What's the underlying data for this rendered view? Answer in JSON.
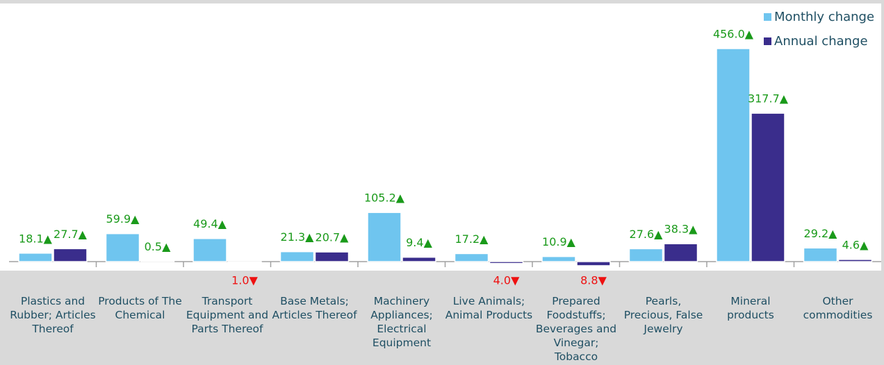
{
  "chart_data": {
    "type": "bar",
    "categories": [
      "Plastics and Rubber; Articles Thereof",
      "Products of The Chemical",
      "Transport Equipment and Parts Thereof",
      "Base Metals; Articles Thereof",
      "Machinery Appliances; Electrical Equipment",
      "Live Animals; Animal Products",
      "Prepared Foodstuffs; Beverages and Vinegar; Tobacco",
      "Pearls, Precious, False Jewelry",
      "Mineral products",
      "Other commodities"
    ],
    "series": [
      {
        "name": "Monthly change",
        "color": "#6fc5ef",
        "values": [
          18.1,
          59.9,
          49.4,
          21.3,
          105.2,
          17.2,
          10.9,
          27.6,
          456.0,
          29.2
        ],
        "value_labels": [
          "18.1▲",
          "59.9▲",
          "49.4▲",
          "21.3▲",
          "105.2▲",
          "17.2▲",
          "10.9▲",
          "27.6▲",
          "456.0▲",
          "29.2▲"
        ]
      },
      {
        "name": "Annual change",
        "color": "#3a2d8c",
        "values": [
          27.7,
          0.5,
          -1.0,
          20.7,
          9.4,
          -4.0,
          -8.8,
          38.3,
          317.7,
          4.6
        ],
        "value_labels": [
          "27.7▲",
          "0.5▲",
          "1.0▼",
          "20.7▲",
          "9.4▲",
          "4.0▼",
          "8.8▼",
          "38.3▲",
          "317.7▲",
          "4.6▲"
        ]
      }
    ],
    "legend": "top-right"
  }
}
